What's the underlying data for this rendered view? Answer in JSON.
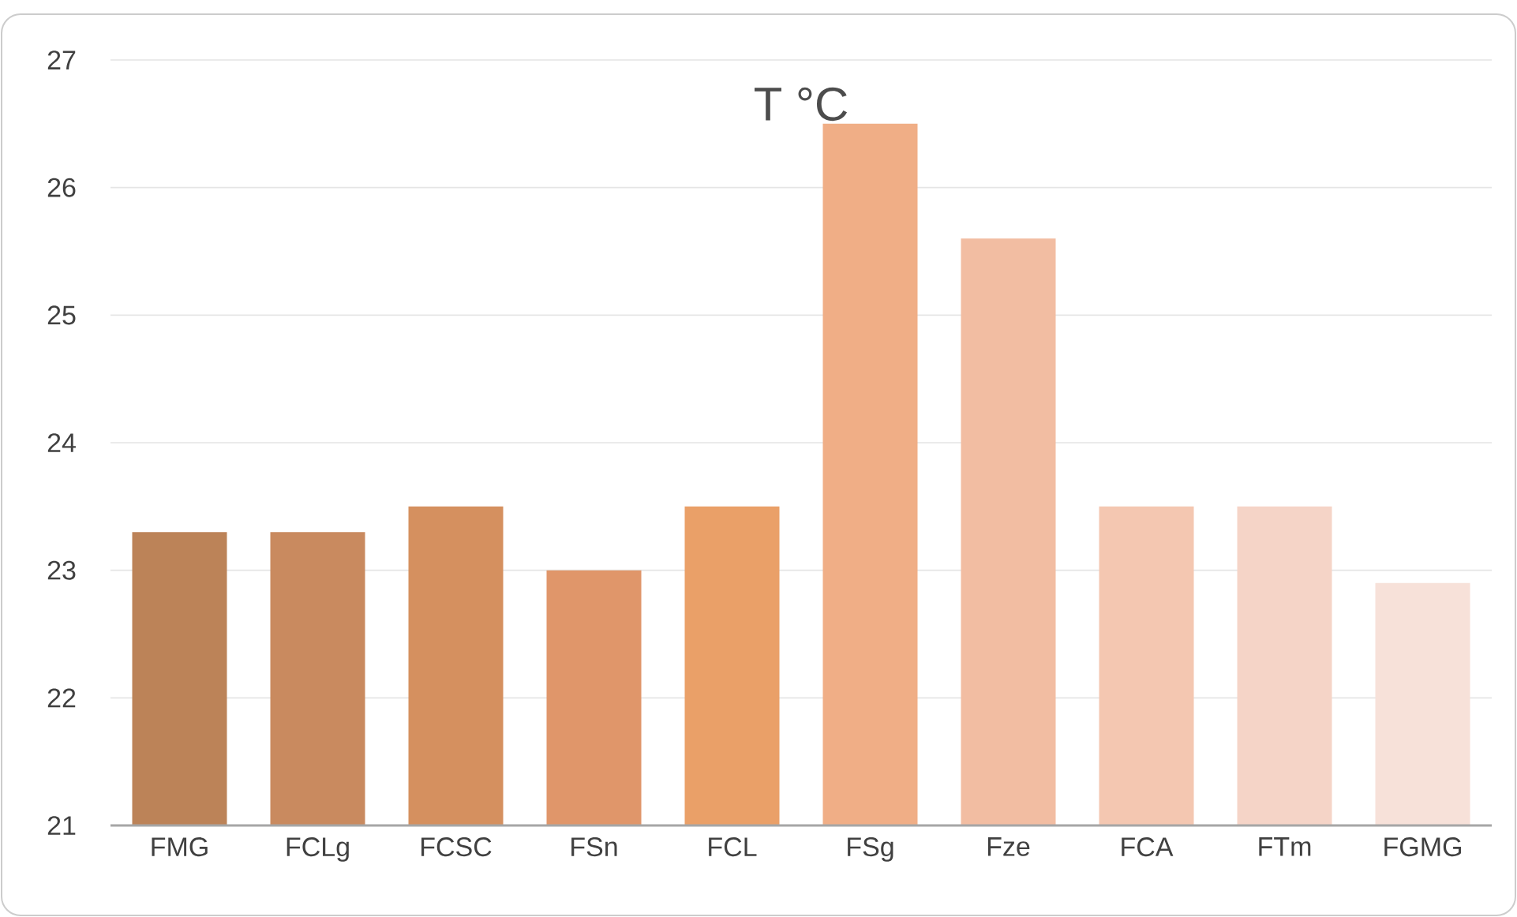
{
  "chart_data": {
    "type": "bar",
    "title": "T °C",
    "categories": [
      "FMG",
      "FCLg",
      "FCSC",
      "FSn",
      "FCL",
      "FSg",
      "Fze",
      "FCA",
      "FTm",
      "FGMG"
    ],
    "values": [
      23.3,
      23.3,
      23.5,
      23.0,
      23.5,
      26.5,
      25.6,
      23.5,
      23.5,
      22.9
    ],
    "colors": [
      "#bc8358",
      "#c98a5f",
      "#d5905f",
      "#e0966a",
      "#eaa068",
      "#f0ae86",
      "#f2bda2",
      "#f4c7b1",
      "#f5d4c7",
      "#f7e1d9"
    ],
    "ylim": [
      21,
      27
    ],
    "yticks": [
      21,
      22,
      23,
      24,
      25,
      26,
      27
    ],
    "grid": "y"
  }
}
